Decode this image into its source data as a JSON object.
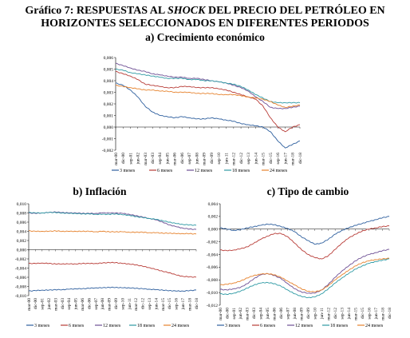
{
  "header": {
    "line1_a": "Gráfico 7: RESPUESTAS AL ",
    "line1_b": "SHOCK",
    "line1_c": " DEL PRECIO DEL PETRÓLEO EN",
    "line2": "HORIZONTES SELECCIONADOS EN DIFERENTES PERIODOS"
  },
  "colors": {
    "3 meses": "#2e5f9e",
    "6 meses": "#b83c37",
    "12 meses": "#6d4f94",
    "18 meses": "#2e9aa4",
    "24 meses": "#e6822d"
  },
  "chart_data": [
    {
      "id": "a",
      "type": "line",
      "title": "a) Crecimiento económico",
      "ylim": [
        -0.002,
        0.006
      ],
      "yticks": [
        "0,006",
        "0,005",
        "0,004",
        "0,003",
        "0,002",
        "0,001",
        "0,000",
        "-0,001",
        "-0,002"
      ],
      "x_ticks": [
        "mar-00",
        "dic-00",
        "sep-01",
        "jun-02",
        "mar-03",
        "dic-03",
        "sep-04",
        "jun-05",
        "mar-06",
        "dic-06",
        "sep-07",
        "jun-08",
        "mar-09",
        "dic-09",
        "sep-10",
        "jun-11",
        "mar-12",
        "dic-12",
        "sep-13",
        "jun-14",
        "mar-15",
        "dic-15",
        "sep-16",
        "jun-17",
        "mar-18",
        "dic-18"
      ],
      "legend": [
        "3 meses",
        "6 meses",
        "12 meses",
        "18 meses",
        "24 meses"
      ],
      "series": [
        {
          "name": "3 meses",
          "values": [
            0.0038,
            0.0036,
            0.0032,
            0.0026,
            0.0018,
            0.0013,
            0.001,
            0.0009,
            0.0008,
            0.0009,
            0.0008,
            0.0007,
            0.0007,
            0.0008,
            0.0007,
            0.0006,
            0.0005,
            0.0003,
            0.0002,
            0.0001,
            0.0,
            -0.0004,
            -0.0012,
            -0.0018,
            -0.0015,
            -0.0012
          ]
        },
        {
          "name": "6 meses",
          "values": [
            0.0048,
            0.0046,
            0.0044,
            0.0041,
            0.0037,
            0.0036,
            0.0035,
            0.0034,
            0.0034,
            0.0035,
            0.0035,
            0.0034,
            0.0034,
            0.0034,
            0.0033,
            0.0032,
            0.003,
            0.0028,
            0.0026,
            0.0024,
            0.0018,
            0.0008,
            0.0,
            -0.0004,
            0.0,
            0.0002
          ]
        },
        {
          "name": "12 meses",
          "values": [
            0.0055,
            0.0053,
            0.0051,
            0.0049,
            0.0048,
            0.0046,
            0.0045,
            0.0044,
            0.0043,
            0.0043,
            0.0042,
            0.0042,
            0.0041,
            0.004,
            0.0039,
            0.0038,
            0.0036,
            0.0034,
            0.0031,
            0.0026,
            0.0022,
            0.0017,
            0.0016,
            0.0016,
            0.0017,
            0.0018
          ]
        },
        {
          "name": "18 meses",
          "values": [
            0.005,
            0.0049,
            0.0047,
            0.0046,
            0.0045,
            0.0044,
            0.0043,
            0.0042,
            0.0042,
            0.0042,
            0.0041,
            0.0041,
            0.004,
            0.004,
            0.0039,
            0.0038,
            0.0037,
            0.0035,
            0.0032,
            0.0028,
            0.0025,
            0.0022,
            0.0021,
            0.0021,
            0.0021,
            0.0021
          ]
        },
        {
          "name": "24 meses",
          "values": [
            0.0036,
            0.0035,
            0.0034,
            0.0033,
            0.0032,
            0.0032,
            0.0031,
            0.0031,
            0.003,
            0.003,
            0.003,
            0.0029,
            0.0029,
            0.0029,
            0.0028,
            0.0028,
            0.0028,
            0.0027,
            0.0026,
            0.0025,
            0.0024,
            0.0022,
            0.0019,
            0.0017,
            0.0018,
            0.0019
          ]
        }
      ]
    },
    {
      "id": "b",
      "type": "line",
      "title": "b) Inflación",
      "ylim": [
        -0.01,
        0.01
      ],
      "yticks": [
        "0,010",
        "0,008",
        "0,006",
        "0,004",
        "0,002",
        "0,000",
        "-0,002",
        "-0,004",
        "-0,006",
        "-0,008",
        "-0,010"
      ],
      "x_ticks": [
        "mar-00",
        "dic-00",
        "sep-01",
        "jun-02",
        "mar-03",
        "dic-03",
        "sep-04",
        "jun-05",
        "mar-06",
        "dic-06",
        "sep-07",
        "jun-08",
        "mar-09",
        "dic-09",
        "sep-10",
        "jun-11",
        "mar-12",
        "dic-12",
        "sep-13",
        "jun-14",
        "mar-15",
        "dic-15",
        "sep-16",
        "jun-17",
        "mar-18",
        "dic-18"
      ],
      "legend": [
        "3 meses",
        "6 meses",
        "12 meses",
        "18 meses",
        "24 meses"
      ],
      "series": [
        {
          "name": "3 meses",
          "values": [
            -0.009,
            -0.0089,
            -0.0088,
            -0.0088,
            -0.0087,
            -0.0087,
            -0.0086,
            -0.0085,
            -0.0085,
            -0.0084,
            -0.0083,
            -0.0083,
            -0.0082,
            -0.0082,
            -0.0083,
            -0.0083,
            -0.0084,
            -0.0085,
            -0.0086,
            -0.0087,
            -0.0088,
            -0.0089,
            -0.009,
            -0.009,
            -0.0089,
            -0.0088
          ]
        },
        {
          "name": "6 meses",
          "values": [
            -0.003,
            -0.003,
            -0.0029,
            -0.003,
            -0.0031,
            -0.0031,
            -0.0031,
            -0.0031,
            -0.003,
            -0.003,
            -0.003,
            -0.0029,
            -0.0028,
            -0.0028,
            -0.003,
            -0.0031,
            -0.0033,
            -0.0036,
            -0.0039,
            -0.0043,
            -0.0047,
            -0.005,
            -0.0055,
            -0.0058,
            -0.0059,
            -0.006
          ]
        },
        {
          "name": "12 meses",
          "values": [
            0.008,
            0.0079,
            0.008,
            0.0081,
            0.0082,
            0.0081,
            0.008,
            0.008,
            0.0079,
            0.0079,
            0.0079,
            0.008,
            0.008,
            0.008,
            0.0079,
            0.0077,
            0.0074,
            0.0071,
            0.0068,
            0.0065,
            0.006,
            0.0054,
            0.005,
            0.0047,
            0.0045,
            0.0044
          ]
        },
        {
          "name": "18 meses",
          "values": [
            0.0081,
            0.008,
            0.008,
            0.0081,
            0.0081,
            0.008,
            0.0079,
            0.0079,
            0.0078,
            0.0078,
            0.0077,
            0.0077,
            0.0077,
            0.0078,
            0.0076,
            0.0075,
            0.0072,
            0.007,
            0.0068,
            0.0066,
            0.0063,
            0.006,
            0.0057,
            0.0055,
            0.0054,
            0.0053
          ]
        },
        {
          "name": "24 meses",
          "values": [
            0.0041,
            0.004,
            0.004,
            0.004,
            0.0041,
            0.004,
            0.004,
            0.004,
            0.004,
            0.004,
            0.0039,
            0.004,
            0.0039,
            0.0039,
            0.0039,
            0.0038,
            0.0038,
            0.0038,
            0.0037,
            0.0037,
            0.0036,
            0.0036,
            0.0035,
            0.0035,
            0.0035,
            0.0034
          ]
        }
      ]
    },
    {
      "id": "c",
      "type": "line",
      "title": "c) Tipo de cambio",
      "ylim": [
        -0.012,
        0.004
      ],
      "yticks": [
        "0,004",
        "0,002",
        "0,000",
        "-0,002",
        "-0,004",
        "-0,006",
        "-0,008",
        "-0,010",
        "-0,012"
      ],
      "x_ticks": [
        "mar-00",
        "dic-00",
        "sep-01",
        "jun-02",
        "mar-03",
        "dic-03",
        "sep-04",
        "jun-05",
        "mar-06",
        "dic-06",
        "sep-07",
        "jun-08",
        "mar-09",
        "dic-09",
        "sep-10",
        "jun-11",
        "mar-12",
        "dic-12",
        "sep-13",
        "jun-14",
        "mar-15",
        "dic-15",
        "sep-16",
        "jun-17",
        "mar-18",
        "dic-18"
      ],
      "legend": [
        "3 meses",
        "6 meses",
        "12 meses",
        "18 meses",
        "24 meses"
      ],
      "series": [
        {
          "name": "3 meses",
          "values": [
            0.0002,
            0.0,
            -0.0002,
            -0.0001,
            0.0002,
            0.0004,
            0.0006,
            0.0008,
            0.0007,
            0.0004,
            0.0001,
            -0.0004,
            -0.0012,
            -0.0018,
            -0.0024,
            -0.0022,
            -0.0016,
            -0.0008,
            -0.0002,
            0.0002,
            0.0006,
            0.0009,
            0.0012,
            0.0015,
            0.0018,
            0.002
          ]
        },
        {
          "name": "6 meses",
          "values": [
            -0.0033,
            -0.0034,
            -0.0033,
            -0.0031,
            -0.0028,
            -0.0022,
            -0.0016,
            -0.0011,
            -0.0007,
            -0.0007,
            -0.0012,
            -0.0022,
            -0.0032,
            -0.004,
            -0.0045,
            -0.0047,
            -0.0042,
            -0.0032,
            -0.0022,
            -0.0014,
            -0.0008,
            -0.0003,
            0.0,
            0.0002,
            0.0004,
            0.0005
          ]
        },
        {
          "name": "12 meses",
          "values": [
            -0.0095,
            -0.0096,
            -0.0094,
            -0.0092,
            -0.0086,
            -0.0078,
            -0.0072,
            -0.007,
            -0.0073,
            -0.0078,
            -0.0086,
            -0.0094,
            -0.0099,
            -0.0101,
            -0.0101,
            -0.0096,
            -0.0087,
            -0.0076,
            -0.0066,
            -0.0058,
            -0.005,
            -0.0044,
            -0.004,
            -0.0037,
            -0.0034,
            -0.0032
          ]
        },
        {
          "name": "18 meses",
          "values": [
            -0.0102,
            -0.0103,
            -0.0101,
            -0.0098,
            -0.0093,
            -0.0088,
            -0.0085,
            -0.0084,
            -0.0086,
            -0.009,
            -0.0096,
            -0.0102,
            -0.0106,
            -0.0108,
            -0.0107,
            -0.0102,
            -0.0094,
            -0.0085,
            -0.0077,
            -0.007,
            -0.0063,
            -0.0058,
            -0.0054,
            -0.0051,
            -0.0049,
            -0.0047
          ]
        },
        {
          "name": "24 meses",
          "values": [
            -0.0088,
            -0.0087,
            -0.0085,
            -0.0082,
            -0.0077,
            -0.0073,
            -0.0071,
            -0.007,
            -0.0072,
            -0.0076,
            -0.0082,
            -0.0088,
            -0.0094,
            -0.0098,
            -0.0099,
            -0.0096,
            -0.0089,
            -0.008,
            -0.0072,
            -0.0065,
            -0.0058,
            -0.0053,
            -0.005,
            -0.0048,
            -0.0047,
            -0.0046
          ]
        }
      ]
    }
  ]
}
